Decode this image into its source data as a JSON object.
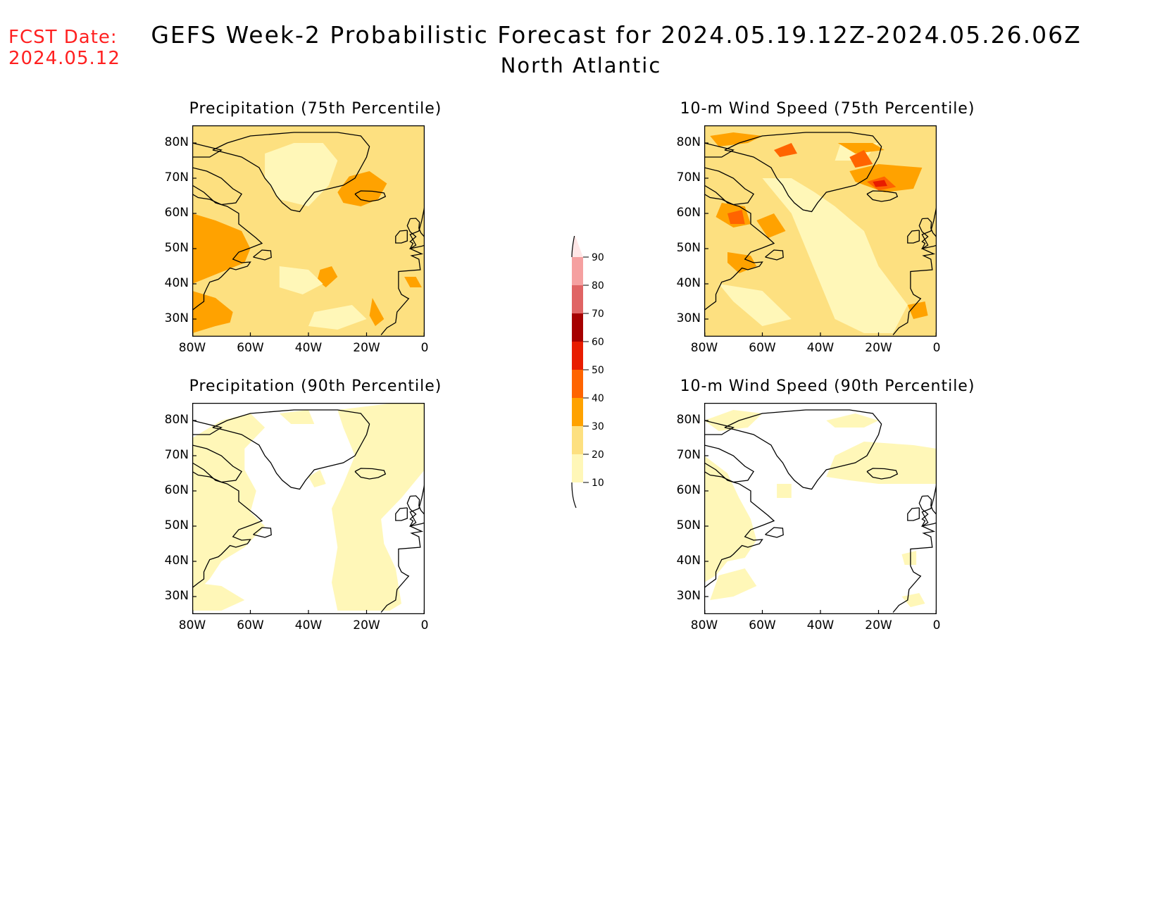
{
  "header": {
    "fcst_label": "FCST Date:",
    "fcst_date": "2024.05.12",
    "title": "GEFS Week-2 Probabilistic Forecast for 2024.05.19.12Z-2024.05.26.06Z",
    "subtitle": "North Atlantic"
  },
  "panels": [
    {
      "title": "Precipitation (75th Percentile)",
      "base_level": 20
    },
    {
      "title": "10-m Wind Speed (75th Percentile)",
      "base_level": 20
    },
    {
      "title": "Precipitation (90th Percentile)",
      "base_level": 0
    },
    {
      "title": "10-m Wind Speed (90th Percentile)",
      "base_level": 0
    }
  ],
  "axes": {
    "lat_labels": [
      "80N",
      "70N",
      "60N",
      "50N",
      "40N",
      "30N"
    ],
    "lon_labels": [
      "80W",
      "60W",
      "40W",
      "20W",
      "0"
    ]
  },
  "colorbar": {
    "levels": [
      "10",
      "20",
      "30",
      "40",
      "50",
      "60",
      "70",
      "80",
      "90"
    ],
    "colors": [
      "#fff7b8",
      "#fde080",
      "#ffa200",
      "#ff6400",
      "#e81c00",
      "#a60000",
      "#e06464",
      "#f5a0a0",
      "#ffe6e6"
    ]
  },
  "colors": {
    "fill_10": "#fff7b8",
    "fill_20": "#fde080",
    "fill_30": "#ffa200",
    "fill_40": "#ff6400",
    "fill_50": "#e81c00"
  }
}
